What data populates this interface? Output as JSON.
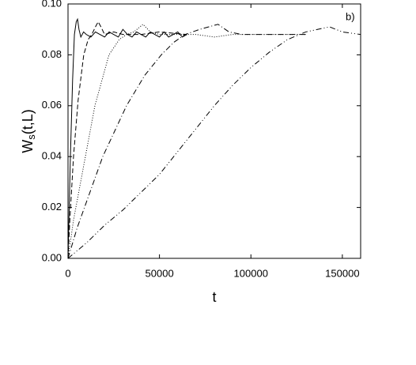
{
  "chart_data": {
    "type": "line",
    "annotation": "b)",
    "x_label": "t",
    "y_label_parts": [
      "W",
      "s",
      "(t,L)"
    ],
    "xlim": [
      0,
      160000
    ],
    "ylim": [
      0,
      0.1
    ],
    "xticks": [
      0,
      50000,
      100000,
      150000
    ],
    "yticks": [
      {
        "value": 0,
        "label": "0.00"
      },
      {
        "value": 0.02,
        "label": "0.02"
      },
      {
        "value": 0.04,
        "label": "0.04"
      },
      {
        "value": 0.06,
        "label": "0.06"
      },
      {
        "value": 0.08,
        "label": "0.08"
      },
      {
        "value": 0.1,
        "label": "0.10"
      }
    ],
    "series": [
      {
        "color": "#000000",
        "dash": "solid",
        "x": [
          0,
          500,
          1300,
          2500,
          3500,
          4500,
          5200,
          6000,
          7000,
          8500,
          10000,
          12500,
          15000,
          17500,
          20000,
          22500,
          25000,
          27500,
          30000,
          32500,
          35000,
          37500,
          40000,
          42500,
          45000,
          47500,
          50000,
          52500,
          55000,
          57500,
          60000,
          62500,
          65000
        ],
        "values": [
          0,
          0.015,
          0.04,
          0.07,
          0.088,
          0.093,
          0.094,
          0.09,
          0.087,
          0.089,
          0.088,
          0.087,
          0.089,
          0.088,
          0.087,
          0.089,
          0.088,
          0.087,
          0.09,
          0.088,
          0.087,
          0.089,
          0.088,
          0.087,
          0.089,
          0.088,
          0.087,
          0.089,
          0.087,
          0.088,
          0.089,
          0.087,
          0.088
        ]
      },
      {
        "color": "#000000",
        "dash": "dash",
        "x": [
          0,
          1000,
          3000,
          5500,
          8600,
          11000,
          13000,
          15000,
          16500,
          18000,
          20000,
          25000,
          30000,
          40000,
          50000,
          65000
        ],
        "values": [
          0,
          0.015,
          0.04,
          0.062,
          0.08,
          0.086,
          0.088,
          0.091,
          0.093,
          0.091,
          0.088,
          0.089,
          0.088,
          0.088,
          0.089,
          0.088
        ]
      },
      {
        "color": "#000000",
        "dash": "dot",
        "x": [
          0,
          3000,
          9500,
          14700,
          22400,
          28000,
          32000,
          36000,
          41000,
          45000,
          50000,
          60000,
          70000,
          80000,
          90000,
          100000,
          110000,
          120000,
          130000
        ],
        "values": [
          0,
          0.015,
          0.04,
          0.06,
          0.08,
          0.086,
          0.088,
          0.089,
          0.092,
          0.089,
          0.088,
          0.088,
          0.088,
          0.087,
          0.088,
          0.088,
          0.088,
          0.088,
          0.088
        ]
      },
      {
        "color": "#000000",
        "dash": "dashdot",
        "x": [
          0,
          5000,
          10000,
          19000,
          32000,
          42000,
          51000,
          58000,
          64000,
          72000,
          82000,
          88000,
          95000,
          105000,
          115000,
          130000
        ],
        "values": [
          0,
          0.012,
          0.022,
          0.04,
          0.06,
          0.072,
          0.08,
          0.085,
          0.088,
          0.09,
          0.092,
          0.089,
          0.088,
          0.088,
          0.088,
          0.088
        ]
      },
      {
        "color": "#000000",
        "dash": "dashdotdot",
        "x": [
          0,
          5000,
          10000,
          20000,
          30000,
          40000,
          50000,
          60000,
          70000,
          80000,
          90000,
          100000,
          110000,
          120000,
          130000,
          143000,
          150000,
          155000,
          160000
        ],
        "values": [
          0,
          0.003,
          0.006,
          0.013,
          0.019,
          0.026,
          0.033,
          0.042,
          0.051,
          0.06,
          0.068,
          0.075,
          0.081,
          0.086,
          0.089,
          0.091,
          0.089,
          0.0885,
          0.088
        ]
      }
    ]
  }
}
